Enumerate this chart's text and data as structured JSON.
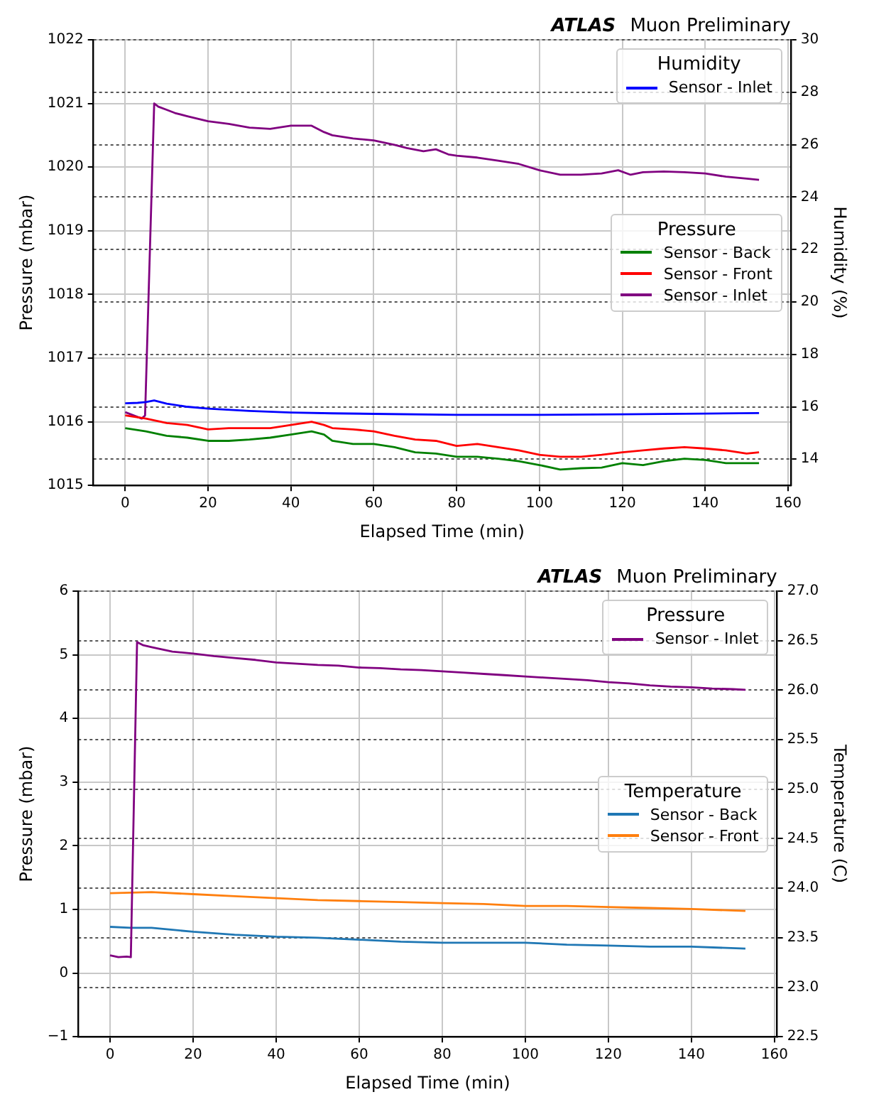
{
  "chart_data": [
    {
      "type": "line",
      "title": "ATLAS",
      "subtitle": "Muon Preliminary",
      "xlabel": "Elapsed Time (min)",
      "ylabel": "Pressure (mbar)",
      "y2label": "Humidity (%)",
      "legend_title": [
        "Humidity",
        "Pressure"
      ],
      "legend": "right",
      "grid": true,
      "marker": "none",
      "line_style": "solid",
      "xlim": [
        -7.65,
        160.65
      ],
      "xticks": [
        0,
        20,
        40,
        60,
        80,
        100,
        120,
        140,
        160
      ],
      "ylim": [
        1015,
        1022
      ],
      "yticks": [
        1015,
        1016,
        1017,
        1018,
        1019,
        1020,
        1021,
        1022
      ],
      "y2lim": [
        13,
        30
      ],
      "y2ticks": [
        14,
        16,
        18,
        20,
        22,
        24,
        26,
        28,
        30
      ],
      "series": [
        {
          "name": "Sensor - Inlet",
          "color": "#0000ff",
          "axis": "y2",
          "x": [
            0,
            3,
            5,
            7,
            10,
            15,
            20,
            30,
            40,
            50,
            60,
            80,
            100,
            120,
            140,
            153
          ],
          "values": [
            16.13,
            16.15,
            16.18,
            16.24,
            16.12,
            16.0,
            15.93,
            15.84,
            15.78,
            15.75,
            15.73,
            15.69,
            15.69,
            15.71,
            15.74,
            15.76
          ]
        },
        {
          "name": "Sensor - Back",
          "color": "#008000",
          "x": [
            0,
            5,
            10,
            15,
            20,
            25,
            30,
            35,
            40,
            45,
            48,
            50,
            55,
            60,
            65,
            70,
            75,
            80,
            85,
            90,
            95,
            100,
            105,
            110,
            115,
            120,
            125,
            130,
            135,
            140,
            145,
            150,
            153
          ],
          "values": [
            1015.9,
            1015.85,
            1015.78,
            1015.75,
            1015.7,
            1015.7,
            1015.72,
            1015.75,
            1015.8,
            1015.85,
            1015.8,
            1015.7,
            1015.65,
            1015.65,
            1015.6,
            1015.52,
            1015.5,
            1015.45,
            1015.45,
            1015.42,
            1015.38,
            1015.32,
            1015.25,
            1015.27,
            1015.28,
            1015.35,
            1015.32,
            1015.38,
            1015.42,
            1015.4,
            1015.35,
            1015.35,
            1015.35
          ]
        },
        {
          "name": "Sensor - Front",
          "color": "#ff0000",
          "x": [
            0,
            5,
            10,
            15,
            20,
            25,
            30,
            35,
            40,
            45,
            48,
            50,
            55,
            60,
            65,
            70,
            75,
            80,
            85,
            90,
            95,
            100,
            105,
            110,
            115,
            120,
            125,
            130,
            135,
            140,
            145,
            150,
            153
          ],
          "values": [
            1016.1,
            1016.05,
            1015.98,
            1015.95,
            1015.88,
            1015.9,
            1015.9,
            1015.9,
            1015.95,
            1016.0,
            1015.95,
            1015.9,
            1015.88,
            1015.85,
            1015.78,
            1015.72,
            1015.7,
            1015.62,
            1015.65,
            1015.6,
            1015.55,
            1015.48,
            1015.45,
            1015.45,
            1015.48,
            1015.52,
            1015.55,
            1015.58,
            1015.6,
            1015.58,
            1015.55,
            1015.5,
            1015.52
          ]
        },
        {
          "name": "Sensor - Inlet",
          "color": "#800080",
          "x": [
            0,
            2,
            4,
            4.8,
            7,
            8,
            10,
            12,
            15,
            20,
            25,
            30,
            35,
            40,
            45,
            48,
            50,
            55,
            60,
            65,
            68,
            72,
            75,
            78,
            80,
            85,
            90,
            95,
            100,
            105,
            110,
            115,
            119,
            122,
            125,
            130,
            135,
            140,
            145,
            150,
            153
          ],
          "values": [
            1016.15,
            1016.1,
            1016.05,
            1016.1,
            1021.0,
            1020.95,
            1020.9,
            1020.85,
            1020.8,
            1020.72,
            1020.68,
            1020.62,
            1020.6,
            1020.65,
            1020.65,
            1020.55,
            1020.5,
            1020.45,
            1020.42,
            1020.35,
            1020.3,
            1020.25,
            1020.28,
            1020.2,
            1020.18,
            1020.15,
            1020.1,
            1020.05,
            1019.95,
            1019.88,
            1019.88,
            1019.9,
            1019.95,
            1019.88,
            1019.92,
            1019.93,
            1019.92,
            1019.9,
            1019.85,
            1019.82,
            1019.8
          ]
        }
      ]
    },
    {
      "type": "line",
      "title": "ATLAS",
      "subtitle": "Muon Preliminary",
      "xlabel": "Elapsed Time (min)",
      "ylabel": "Pressure (mbar)",
      "y2label": "Temperature (C)",
      "legend_title": [
        "Pressure",
        "Temperature"
      ],
      "legend": "right",
      "grid": true,
      "marker": "none",
      "line_style": "solid",
      "xlim": [
        -7.65,
        160.65
      ],
      "xticks": [
        0,
        20,
        40,
        60,
        80,
        100,
        120,
        140,
        160
      ],
      "ylim": [
        -1,
        6
      ],
      "yticks": [
        {
          "value": -1,
          "label": "−1"
        },
        0,
        1,
        2,
        3,
        4,
        5,
        6
      ],
      "y2lim": [
        22.5,
        27
      ],
      "y2ticks": [
        22.5,
        {
          "value": 23,
          "label": "23.0"
        },
        23.5,
        {
          "value": 24,
          "label": "24.0"
        },
        24.5,
        {
          "value": 25,
          "label": "25.0"
        },
        25.5,
        {
          "value": 26,
          "label": "26.0"
        },
        26.5,
        {
          "value": 27,
          "label": "27.0"
        }
      ],
      "series": [
        {
          "name": "Sensor - Inlet",
          "color": "#800080",
          "x": [
            0,
            2,
            4,
            5,
            6.5,
            8,
            10,
            15,
            20,
            25,
            30,
            35,
            40,
            45,
            50,
            55,
            60,
            65,
            70,
            75,
            80,
            85,
            90,
            95,
            100,
            105,
            110,
            115,
            120,
            125,
            130,
            135,
            140,
            145,
            150,
            153
          ],
          "values": [
            0.28,
            0.25,
            0.26,
            0.25,
            5.2,
            5.15,
            5.12,
            5.05,
            5.02,
            4.98,
            4.95,
            4.92,
            4.88,
            4.86,
            4.84,
            4.83,
            4.8,
            4.79,
            4.77,
            4.76,
            4.74,
            4.72,
            4.7,
            4.68,
            4.66,
            4.64,
            4.62,
            4.6,
            4.57,
            4.55,
            4.52,
            4.5,
            4.49,
            4.47,
            4.46,
            4.45
          ]
        },
        {
          "name": "Sensor - Back",
          "color": "#1f77b4",
          "axis": "y2",
          "x": [
            0,
            5,
            10,
            15,
            20,
            30,
            40,
            50,
            60,
            70,
            80,
            90,
            100,
            110,
            120,
            130,
            140,
            153
          ],
          "values": [
            23.61,
            23.6,
            23.6,
            23.58,
            23.56,
            23.53,
            23.51,
            23.5,
            23.48,
            23.46,
            23.45,
            23.45,
            23.45,
            23.43,
            23.42,
            23.41,
            23.41,
            23.39
          ]
        },
        {
          "name": "Sensor - Front",
          "color": "#ff7f0e",
          "axis": "y2",
          "x": [
            0,
            10,
            20,
            30,
            40,
            50,
            60,
            70,
            80,
            90,
            100,
            110,
            120,
            130,
            140,
            153
          ],
          "values": [
            23.95,
            23.96,
            23.94,
            23.92,
            23.9,
            23.88,
            23.87,
            23.86,
            23.85,
            23.84,
            23.82,
            23.82,
            23.81,
            23.8,
            23.79,
            23.77
          ]
        }
      ]
    }
  ]
}
